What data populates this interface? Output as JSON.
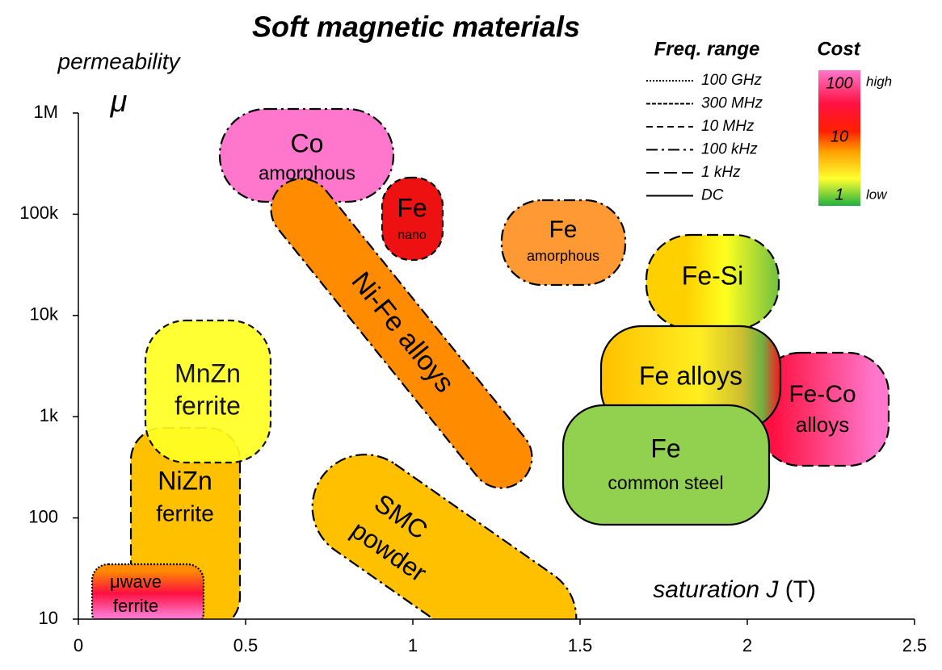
{
  "title": "Soft magnetic materials",
  "y_axis": {
    "label": "permeability",
    "symbol": "μ",
    "scale": "log",
    "lim": [
      10,
      1000000
    ],
    "ticks": [
      10,
      100,
      {
        "value": 1000,
        "label": "1k"
      },
      {
        "value": 10000,
        "label": "10k"
      },
      {
        "value": 100000,
        "label": "100k"
      },
      {
        "value": 1000000,
        "label": "1M"
      }
    ]
  },
  "x_axis": {
    "label": "saturation ",
    "variable": "J",
    "unit": " (T)",
    "lim": [
      0,
      2.5
    ],
    "ticks": [
      0,
      0.5,
      1,
      1.5,
      2,
      2.5
    ]
  },
  "freq_legend": {
    "title": "Freq. range",
    "items": [
      "100 GHz",
      "300 MHz",
      "10 MHz",
      "100 kHz",
      "1 kHz",
      "DC"
    ]
  },
  "cost_legend": {
    "title": "Cost",
    "scale_labels": [
      "100",
      "10",
      "1"
    ],
    "high": "high",
    "low": "low"
  },
  "regions": [
    {
      "lines": [
        "Co",
        "amorphous"
      ]
    },
    {
      "lines": [
        "Fe",
        "nano"
      ]
    },
    {
      "lines": [
        "Fe",
        "amorphous"
      ]
    },
    {
      "lines": [
        "Ni-Fe alloys"
      ]
    },
    {
      "lines": [
        "Fe-Si"
      ]
    },
    {
      "lines": [
        "NiZn",
        "ferrite"
      ]
    },
    {
      "lines": [
        "MnZn",
        "ferrite"
      ]
    },
    {
      "lines": [
        "Fe-Co",
        "alloys"
      ]
    },
    {
      "lines": [
        "Fe alloys"
      ]
    },
    {
      "lines": [
        "Fe",
        "common steel"
      ]
    },
    {
      "lines": [
        "SMC",
        "powder"
      ]
    },
    {
      "lines": [
        "μwave",
        "ferrite"
      ]
    }
  ]
}
